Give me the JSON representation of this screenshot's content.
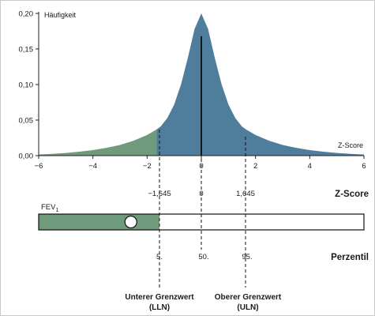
{
  "chart_data": {
    "type": "area",
    "ylabel": "Häufigkeit",
    "xlabel": "Z-Score",
    "xlim": [
      -6,
      6
    ],
    "ylim": [
      0,
      0.2
    ],
    "x_ticks": [
      -6,
      -4,
      -2,
      0,
      2,
      4,
      6
    ],
    "x_tick_labels": [
      "−6",
      "−4",
      "−2",
      "0",
      "2",
      "4",
      "6"
    ],
    "y_ticks": [
      0,
      0.05,
      0.1,
      0.15,
      0.2
    ],
    "y_tick_labels": [
      "0,00",
      "0,05",
      "0,10",
      "0,15",
      "0,20"
    ],
    "series": [
      {
        "x": [
          -6,
          -5.5,
          -5,
          -4.5,
          -4,
          -3.5,
          -3,
          -2.5,
          -2,
          -1.645,
          -1.5,
          -1.25,
          -1,
          -0.75,
          -0.5,
          -0.25,
          0,
          0.25,
          0.5,
          0.75,
          1,
          1.25,
          1.5,
          1.645,
          2,
          2.5,
          3,
          3.5,
          4,
          4.5,
          5,
          5.5,
          6
        ],
        "y": [
          0.0015,
          0.0025,
          0.0038,
          0.0055,
          0.0078,
          0.011,
          0.015,
          0.021,
          0.029,
          0.037,
          0.041,
          0.053,
          0.072,
          0.1,
          0.137,
          0.178,
          0.2,
          0.178,
          0.137,
          0.1,
          0.072,
          0.053,
          0.041,
          0.037,
          0.029,
          0.021,
          0.015,
          0.011,
          0.0078,
          0.0055,
          0.0038,
          0.0025,
          0.0015
        ]
      }
    ],
    "lower_limit_z": -1.645,
    "upper_limit_z": 1.645,
    "mean_z": 0,
    "colors": {
      "below_lln": "#6f9a7c",
      "normal": "#4e7e9c",
      "mean_line": "#000000",
      "bar_fill": "#6f9a7c"
    }
  },
  "z_score_scale": {
    "title": "Z-Score",
    "labels": [
      "−1,645",
      "0",
      "1,645"
    ]
  },
  "fev1_bar": {
    "label": "FEV",
    "subscript": "1",
    "marker_z": -2.6
  },
  "percentile_scale": {
    "title": "Perzentil",
    "labels": [
      "5.",
      "50.",
      "95."
    ]
  },
  "lln": {
    "line1": "Unterer Grenzwert",
    "line2": "(LLN)"
  },
  "uln": {
    "line1": "Oberer Grenzwert",
    "line2": "(ULN)"
  }
}
